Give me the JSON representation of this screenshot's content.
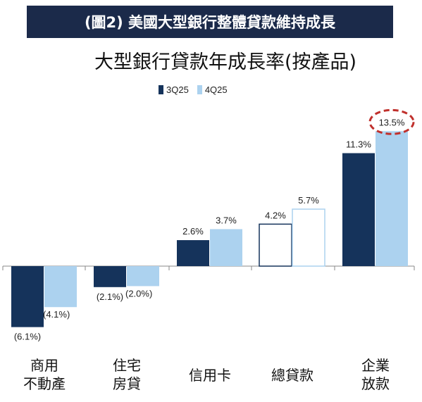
{
  "banner": {
    "title": "(圖2) 美國大型銀行整體貸款維持成長"
  },
  "colors": {
    "banner_bg": "#1b2a4a",
    "series_3q25": "#15335b",
    "series_4q25": "#acd2ef",
    "highlight": "#c0302c"
  },
  "chart_data": {
    "type": "bar",
    "title": "大型銀行貸款年成長率(按產品)",
    "categories": [
      "商用\n不動產",
      "住宅\n房貸",
      "信用卡",
      "總貸款",
      "企業\n放款"
    ],
    "series": [
      {
        "name": "3Q25",
        "values": [
          -6.1,
          -2.1,
          2.6,
          4.2,
          11.3
        ],
        "labels": [
          "(6.1%)",
          "(2.1%)",
          "2.6%",
          "4.2%",
          "11.3%"
        ]
      },
      {
        "name": "4Q25",
        "values": [
          -4.1,
          -2.0,
          3.7,
          5.7,
          13.5
        ],
        "labels": [
          "(4.1%)",
          "(2.0%)",
          "3.7%",
          "5.7%",
          "13.5%"
        ]
      }
    ],
    "hollow_category_index": 3,
    "highlighted_point": {
      "series": "4Q25",
      "category_index": 4
    },
    "legend_placement": "top",
    "grid": false
  }
}
